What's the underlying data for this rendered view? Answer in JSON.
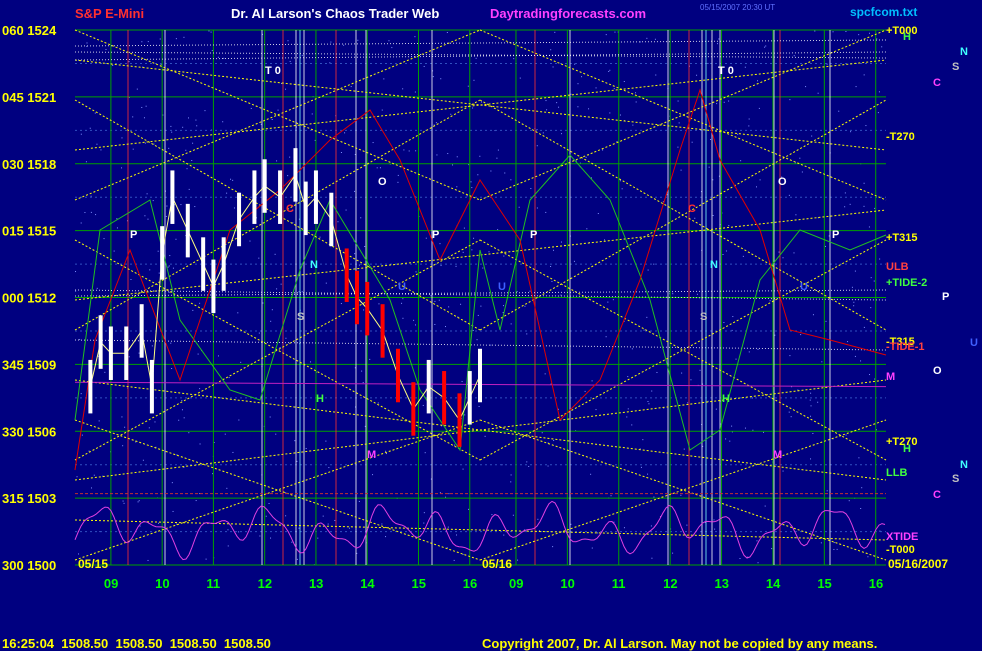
{
  "header": {
    "title_left": "S&P E-Mini",
    "title_center": "Dr. Al Larson's Chaos Trader Web",
    "title_site": "Daytradingforecasts.com",
    "title_file": "spcfcom.txt",
    "timestamp": "05/15/2007 20:30 UT"
  },
  "colors": {
    "background": "#000080",
    "grid_green": "#00a000",
    "price_white": "#ffffff",
    "price_red": "#ff0000",
    "field_line_yellow": "#ffff00",
    "flux_green": "#20c020",
    "flux_red": "#e00000",
    "xtide_magenta": "#e040e0"
  },
  "y_axis": {
    "labels": [
      {
        "code": "060",
        "price": "1524"
      },
      {
        "code": "045",
        "price": "1521"
      },
      {
        "code": "030",
        "price": "1518"
      },
      {
        "code": "015",
        "price": "1515"
      },
      {
        "code": "000",
        "price": "1512"
      },
      {
        "code": "345",
        "price": "1509"
      },
      {
        "code": "330",
        "price": "1506"
      },
      {
        "code": "315",
        "price": "1503"
      },
      {
        "code": "300",
        "price": "1500"
      }
    ]
  },
  "x_axis": {
    "hours": [
      "09",
      "10",
      "11",
      "12",
      "13",
      "14",
      "15",
      "16",
      "09",
      "10",
      "11",
      "12",
      "13",
      "14",
      "15",
      "16"
    ],
    "date_left": "05/15",
    "date_mid": "05/16",
    "date_right": "05/16/2007"
  },
  "right_labels": [
    {
      "text": "+T000",
      "color": "#ffff00"
    },
    {
      "text": "-T270",
      "color": "#ffff00"
    },
    {
      "text": "+T315",
      "color": "#ffff00"
    },
    {
      "text": "ULB",
      "color": "#ff4040"
    },
    {
      "text": "+TIDE-2",
      "color": "#40ff40"
    },
    {
      "text": "-T315",
      "color": "#ffff00"
    },
    {
      "text": "-TIDE-1",
      "color": "#ff4040"
    },
    {
      "text": "+T270",
      "color": "#ffff00"
    },
    {
      "text": "LLB",
      "color": "#40ff40"
    },
    {
      "text": "XTIDE",
      "color": "#ff40ff"
    },
    {
      "text": "-T000",
      "color": "#ffff00"
    }
  ],
  "planet_markers": {
    "T0": "T 0",
    "P": "P",
    "O": "O",
    "N": "N",
    "S": "S",
    "H": "H",
    "C": "C",
    "M": "M",
    "U": "U"
  },
  "chart_data": {
    "type": "line",
    "title": "S&P E-Mini",
    "ylim": [
      1500,
      1524
    ],
    "x_categories": [
      "09",
      "10",
      "11",
      "12",
      "13",
      "14",
      "15",
      "16",
      "09",
      "10",
      "11",
      "12",
      "13",
      "14",
      "15",
      "16"
    ],
    "series": [
      {
        "name": "S&P E-Mini",
        "x_hours": [
          8.6,
          8.8,
          9.0,
          9.3,
          9.6,
          9.8,
          10.0,
          10.2,
          10.5,
          10.8,
          11.0,
          11.2,
          11.5,
          11.8,
          12.0,
          12.3,
          12.6,
          12.8,
          13.0,
          13.3,
          13.6,
          13.8,
          14.0,
          14.3,
          14.6,
          14.9,
          15.2,
          15.5,
          15.8,
          16.0,
          16.2
        ],
        "values": [
          1508.0,
          1510.0,
          1509.5,
          1509.5,
          1510.5,
          1508.0,
          1514.0,
          1516.5,
          1515.0,
          1513.5,
          1512.5,
          1513.5,
          1515.5,
          1516.5,
          1517.0,
          1516.5,
          1517.5,
          1516.0,
          1516.5,
          1515.5,
          1513.0,
          1512.0,
          1511.5,
          1510.5,
          1508.5,
          1507.0,
          1508.0,
          1507.5,
          1506.5,
          1507.5,
          1508.5
        ]
      }
    ],
    "last_quote": "16:25:04 1508.50 1508.50 1508.50 1508.50"
  },
  "footer": {
    "status": "16:25:04  1508.50  1508.50  1508.50  1508.50",
    "copyright": "Copyright 2007, Dr. Al Larson. May not be copied by any means."
  }
}
